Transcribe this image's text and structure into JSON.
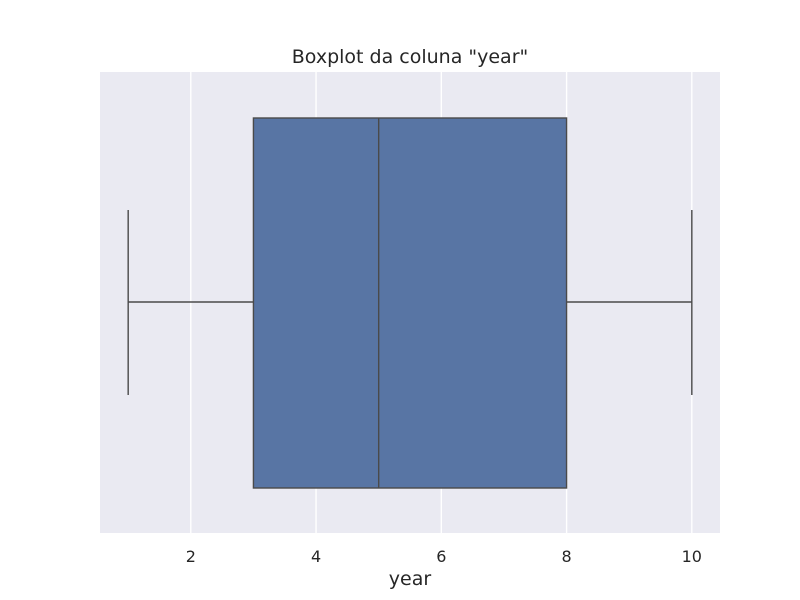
{
  "chart_data": {
    "type": "boxplot",
    "title": "Boxplot da coluna \"year\"",
    "xlabel": "year",
    "ylabel": "",
    "xlim": [
      0.55,
      10.45
    ],
    "x_ticks": [
      2,
      4,
      6,
      8,
      10
    ],
    "grid": true,
    "orientation": "horizontal",
    "box": {
      "whisker_low": 1,
      "q1": 3,
      "median": 5,
      "q3": 8,
      "whisker_high": 10
    },
    "colors": {
      "box_fill": "#5875a4",
      "line": "#4a4a4a",
      "axes_background": "#eaeaf2",
      "grid": "#ffffff"
    }
  }
}
